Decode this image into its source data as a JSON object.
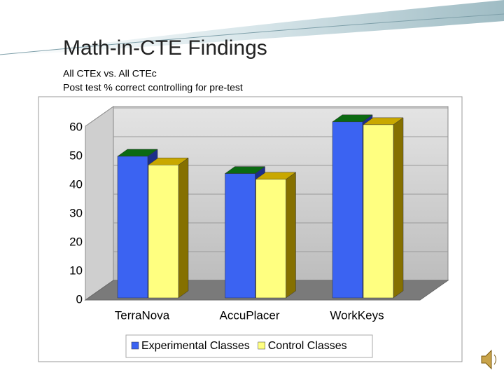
{
  "header": {
    "title": "Math-in-CTE Findings",
    "subtitle_lines": [
      "All CTEx vs. All CTEc",
      "Post test % correct controlling for pre-test"
    ]
  },
  "chart_data": {
    "type": "bar3d",
    "categories": [
      "TerraNova",
      "AccuPlacer",
      "WorkKeys"
    ],
    "series": [
      {
        "name": "Experimental Classes",
        "color": "#3b63f2",
        "values": [
          50,
          44,
          62
        ]
      },
      {
        "name": "Control Classes",
        "color": "#ffff80",
        "values": [
          47,
          42,
          61
        ]
      }
    ],
    "ylim": [
      0,
      60
    ],
    "yticks": [
      0,
      10,
      20,
      30,
      40,
      50,
      60
    ],
    "grid": true,
    "legend": "bottom"
  }
}
